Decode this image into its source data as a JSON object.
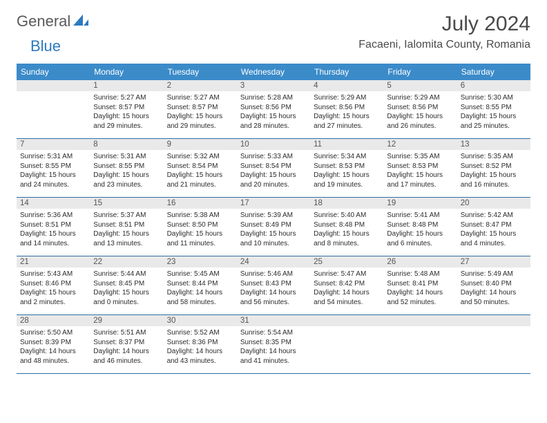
{
  "brand": {
    "part1": "General",
    "part2": "Blue"
  },
  "title": "July 2024",
  "location": "Facaeni, Ialomita County, Romania",
  "colors": {
    "header_bg": "#3b8bc9",
    "header_text": "#ffffff",
    "datebar_bg": "#e9e9e9",
    "week_divider": "#2d6fa3",
    "body_text": "#2b2b2b",
    "title_text": "#4a4a4a",
    "brand_gray": "#5a5a5a",
    "brand_blue": "#2d7bbf",
    "page_bg": "#ffffff"
  },
  "day_names": [
    "Sunday",
    "Monday",
    "Tuesday",
    "Wednesday",
    "Thursday",
    "Friday",
    "Saturday"
  ],
  "weeks": [
    [
      {
        "date": "",
        "empty": true
      },
      {
        "date": "1",
        "sunrise": "Sunrise: 5:27 AM",
        "sunset": "Sunset: 8:57 PM",
        "daylight1": "Daylight: 15 hours",
        "daylight2": "and 29 minutes."
      },
      {
        "date": "2",
        "sunrise": "Sunrise: 5:27 AM",
        "sunset": "Sunset: 8:57 PM",
        "daylight1": "Daylight: 15 hours",
        "daylight2": "and 29 minutes."
      },
      {
        "date": "3",
        "sunrise": "Sunrise: 5:28 AM",
        "sunset": "Sunset: 8:56 PM",
        "daylight1": "Daylight: 15 hours",
        "daylight2": "and 28 minutes."
      },
      {
        "date": "4",
        "sunrise": "Sunrise: 5:29 AM",
        "sunset": "Sunset: 8:56 PM",
        "daylight1": "Daylight: 15 hours",
        "daylight2": "and 27 minutes."
      },
      {
        "date": "5",
        "sunrise": "Sunrise: 5:29 AM",
        "sunset": "Sunset: 8:56 PM",
        "daylight1": "Daylight: 15 hours",
        "daylight2": "and 26 minutes."
      },
      {
        "date": "6",
        "sunrise": "Sunrise: 5:30 AM",
        "sunset": "Sunset: 8:55 PM",
        "daylight1": "Daylight: 15 hours",
        "daylight2": "and 25 minutes."
      }
    ],
    [
      {
        "date": "7",
        "sunrise": "Sunrise: 5:31 AM",
        "sunset": "Sunset: 8:55 PM",
        "daylight1": "Daylight: 15 hours",
        "daylight2": "and 24 minutes."
      },
      {
        "date": "8",
        "sunrise": "Sunrise: 5:31 AM",
        "sunset": "Sunset: 8:55 PM",
        "daylight1": "Daylight: 15 hours",
        "daylight2": "and 23 minutes."
      },
      {
        "date": "9",
        "sunrise": "Sunrise: 5:32 AM",
        "sunset": "Sunset: 8:54 PM",
        "daylight1": "Daylight: 15 hours",
        "daylight2": "and 21 minutes."
      },
      {
        "date": "10",
        "sunrise": "Sunrise: 5:33 AM",
        "sunset": "Sunset: 8:54 PM",
        "daylight1": "Daylight: 15 hours",
        "daylight2": "and 20 minutes."
      },
      {
        "date": "11",
        "sunrise": "Sunrise: 5:34 AM",
        "sunset": "Sunset: 8:53 PM",
        "daylight1": "Daylight: 15 hours",
        "daylight2": "and 19 minutes."
      },
      {
        "date": "12",
        "sunrise": "Sunrise: 5:35 AM",
        "sunset": "Sunset: 8:53 PM",
        "daylight1": "Daylight: 15 hours",
        "daylight2": "and 17 minutes."
      },
      {
        "date": "13",
        "sunrise": "Sunrise: 5:35 AM",
        "sunset": "Sunset: 8:52 PM",
        "daylight1": "Daylight: 15 hours",
        "daylight2": "and 16 minutes."
      }
    ],
    [
      {
        "date": "14",
        "sunrise": "Sunrise: 5:36 AM",
        "sunset": "Sunset: 8:51 PM",
        "daylight1": "Daylight: 15 hours",
        "daylight2": "and 14 minutes."
      },
      {
        "date": "15",
        "sunrise": "Sunrise: 5:37 AM",
        "sunset": "Sunset: 8:51 PM",
        "daylight1": "Daylight: 15 hours",
        "daylight2": "and 13 minutes."
      },
      {
        "date": "16",
        "sunrise": "Sunrise: 5:38 AM",
        "sunset": "Sunset: 8:50 PM",
        "daylight1": "Daylight: 15 hours",
        "daylight2": "and 11 minutes."
      },
      {
        "date": "17",
        "sunrise": "Sunrise: 5:39 AM",
        "sunset": "Sunset: 8:49 PM",
        "daylight1": "Daylight: 15 hours",
        "daylight2": "and 10 minutes."
      },
      {
        "date": "18",
        "sunrise": "Sunrise: 5:40 AM",
        "sunset": "Sunset: 8:48 PM",
        "daylight1": "Daylight: 15 hours",
        "daylight2": "and 8 minutes."
      },
      {
        "date": "19",
        "sunrise": "Sunrise: 5:41 AM",
        "sunset": "Sunset: 8:48 PM",
        "daylight1": "Daylight: 15 hours",
        "daylight2": "and 6 minutes."
      },
      {
        "date": "20",
        "sunrise": "Sunrise: 5:42 AM",
        "sunset": "Sunset: 8:47 PM",
        "daylight1": "Daylight: 15 hours",
        "daylight2": "and 4 minutes."
      }
    ],
    [
      {
        "date": "21",
        "sunrise": "Sunrise: 5:43 AM",
        "sunset": "Sunset: 8:46 PM",
        "daylight1": "Daylight: 15 hours",
        "daylight2": "and 2 minutes."
      },
      {
        "date": "22",
        "sunrise": "Sunrise: 5:44 AM",
        "sunset": "Sunset: 8:45 PM",
        "daylight1": "Daylight: 15 hours",
        "daylight2": "and 0 minutes."
      },
      {
        "date": "23",
        "sunrise": "Sunrise: 5:45 AM",
        "sunset": "Sunset: 8:44 PM",
        "daylight1": "Daylight: 14 hours",
        "daylight2": "and 58 minutes."
      },
      {
        "date": "24",
        "sunrise": "Sunrise: 5:46 AM",
        "sunset": "Sunset: 8:43 PM",
        "daylight1": "Daylight: 14 hours",
        "daylight2": "and 56 minutes."
      },
      {
        "date": "25",
        "sunrise": "Sunrise: 5:47 AM",
        "sunset": "Sunset: 8:42 PM",
        "daylight1": "Daylight: 14 hours",
        "daylight2": "and 54 minutes."
      },
      {
        "date": "26",
        "sunrise": "Sunrise: 5:48 AM",
        "sunset": "Sunset: 8:41 PM",
        "daylight1": "Daylight: 14 hours",
        "daylight2": "and 52 minutes."
      },
      {
        "date": "27",
        "sunrise": "Sunrise: 5:49 AM",
        "sunset": "Sunset: 8:40 PM",
        "daylight1": "Daylight: 14 hours",
        "daylight2": "and 50 minutes."
      }
    ],
    [
      {
        "date": "28",
        "sunrise": "Sunrise: 5:50 AM",
        "sunset": "Sunset: 8:39 PM",
        "daylight1": "Daylight: 14 hours",
        "daylight2": "and 48 minutes."
      },
      {
        "date": "29",
        "sunrise": "Sunrise: 5:51 AM",
        "sunset": "Sunset: 8:37 PM",
        "daylight1": "Daylight: 14 hours",
        "daylight2": "and 46 minutes."
      },
      {
        "date": "30",
        "sunrise": "Sunrise: 5:52 AM",
        "sunset": "Sunset: 8:36 PM",
        "daylight1": "Daylight: 14 hours",
        "daylight2": "and 43 minutes."
      },
      {
        "date": "31",
        "sunrise": "Sunrise: 5:54 AM",
        "sunset": "Sunset: 8:35 PM",
        "daylight1": "Daylight: 14 hours",
        "daylight2": "and 41 minutes."
      },
      {
        "date": "",
        "empty": true
      },
      {
        "date": "",
        "empty": true
      },
      {
        "date": "",
        "empty": true
      }
    ]
  ]
}
